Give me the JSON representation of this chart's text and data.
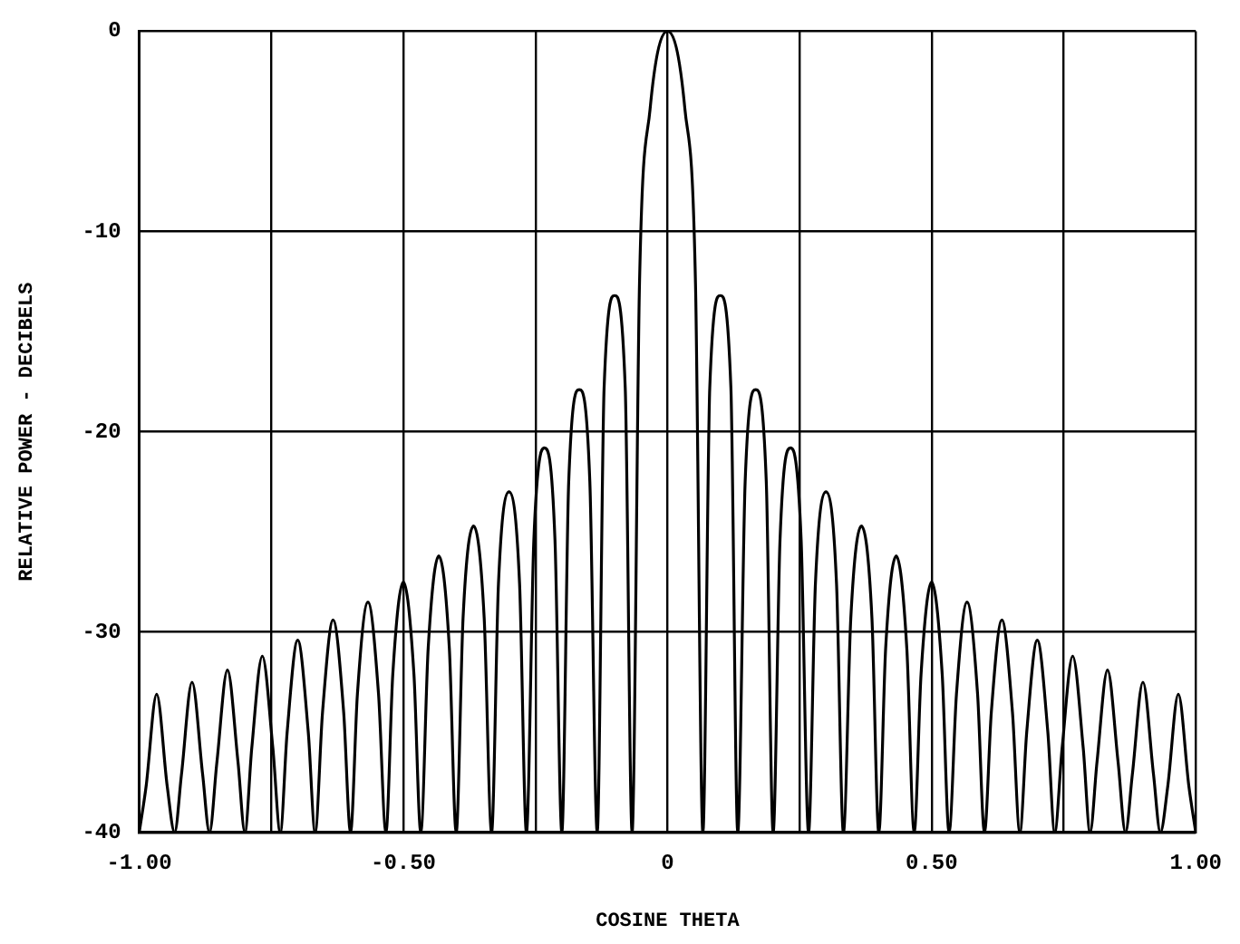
{
  "chart_data": {
    "type": "line",
    "xlabel": "COSINE THETA",
    "ylabel": "RELATIVE POWER - DECIBELS",
    "x": [
      -1.0,
      -0.987,
      -0.967,
      -0.947,
      -0.933,
      -0.92,
      -0.9,
      -0.88,
      -0.867,
      -0.853,
      -0.833,
      -0.813,
      -0.8,
      -0.787,
      -0.767,
      -0.747,
      -0.733,
      -0.72,
      -0.7,
      -0.68,
      -0.667,
      -0.653,
      -0.633,
      -0.613,
      -0.6,
      -0.587,
      -0.567,
      -0.547,
      -0.533,
      -0.52,
      -0.5,
      -0.48,
      -0.467,
      -0.453,
      -0.433,
      -0.413,
      -0.4,
      -0.387,
      -0.367,
      -0.347,
      -0.333,
      -0.32,
      -0.3,
      -0.28,
      -0.267,
      -0.253,
      -0.233,
      -0.213,
      -0.2,
      -0.187,
      -0.167,
      -0.147,
      -0.133,
      -0.12,
      -0.1,
      -0.08,
      -0.067,
      -0.053,
      -0.033,
      0,
      0.033,
      0.053,
      0.067,
      0.08,
      0.1,
      0.12,
      0.133,
      0.147,
      0.167,
      0.187,
      0.2,
      0.213,
      0.233,
      0.253,
      0.267,
      0.28,
      0.3,
      0.32,
      0.333,
      0.347,
      0.367,
      0.387,
      0.4,
      0.413,
      0.433,
      0.453,
      0.467,
      0.48,
      0.5,
      0.52,
      0.533,
      0.547,
      0.567,
      0.587,
      0.6,
      0.613,
      0.633,
      0.653,
      0.667,
      0.68,
      0.7,
      0.72,
      0.733,
      0.747,
      0.767,
      0.787,
      0.8,
      0.813,
      0.833,
      0.853,
      0.867,
      0.88,
      0.9,
      0.92,
      0.933,
      0.947,
      0.967,
      0.987,
      1.0
    ],
    "series": [
      {
        "color": "#000000",
        "values": [
          -40,
          -37.7,
          -33.1,
          -37.7,
          -40,
          -37.1,
          -32.5,
          -37.1,
          -40,
          -36.5,
          -31.9,
          -36.5,
          -40,
          -35.8,
          -31.2,
          -35.8,
          -40,
          -35.0,
          -30.4,
          -35.0,
          -40,
          -34.0,
          -29.4,
          -34.0,
          -40,
          -33.1,
          -28.5,
          -33.1,
          -40,
          -32.1,
          -27.5,
          -32.1,
          -40,
          -30.8,
          -26.2,
          -30.8,
          -40,
          -29.3,
          -24.7,
          -29.3,
          -40,
          -27.6,
          -23.0,
          -27.6,
          -40,
          -25.4,
          -20.8,
          -25.4,
          -40,
          -22.5,
          -17.9,
          -22.5,
          -40,
          -17.8,
          -13.2,
          -17.8,
          -40,
          -12.6,
          -3.9,
          0,
          -3.9,
          -12.6,
          -40,
          -17.8,
          -13.2,
          -17.8,
          -40,
          -22.5,
          -17.9,
          -22.5,
          -40,
          -25.4,
          -20.8,
          -25.4,
          -40,
          -27.6,
          -23.0,
          -27.6,
          -40,
          -29.3,
          -24.7,
          -29.3,
          -40,
          -30.8,
          -26.2,
          -30.8,
          -40,
          -32.1,
          -27.5,
          -32.1,
          -40,
          -33.1,
          -28.5,
          -33.1,
          -40,
          -34.0,
          -29.4,
          -34.0,
          -40,
          -35.0,
          -30.4,
          -35.0,
          -40,
          -35.8,
          -31.2,
          -35.8,
          -40,
          -36.5,
          -31.9,
          -36.5,
          -40,
          -37.1,
          -32.5,
          -37.1,
          -40,
          -37.7,
          -33.1,
          -37.7,
          -40
        ]
      }
    ],
    "xlim": [
      -1,
      1
    ],
    "xticks": [
      {
        "value": -1,
        "label": "-1.00"
      },
      {
        "value": -0.75,
        "label": null
      },
      {
        "value": -0.5,
        "label": "-0.50"
      },
      {
        "value": -0.25,
        "label": null
      },
      0,
      {
        "value": 0.25,
        "label": null
      },
      {
        "value": 0.5,
        "label": "0.50"
      },
      {
        "value": 0.75,
        "label": null
      },
      {
        "value": 1,
        "label": "1.00"
      }
    ],
    "ylim": [
      -40,
      0
    ],
    "yticks": [
      -40,
      -30,
      -20,
      -10,
      0
    ],
    "grid": true,
    "legend": false,
    "marker": "none",
    "line_style": "solid"
  }
}
